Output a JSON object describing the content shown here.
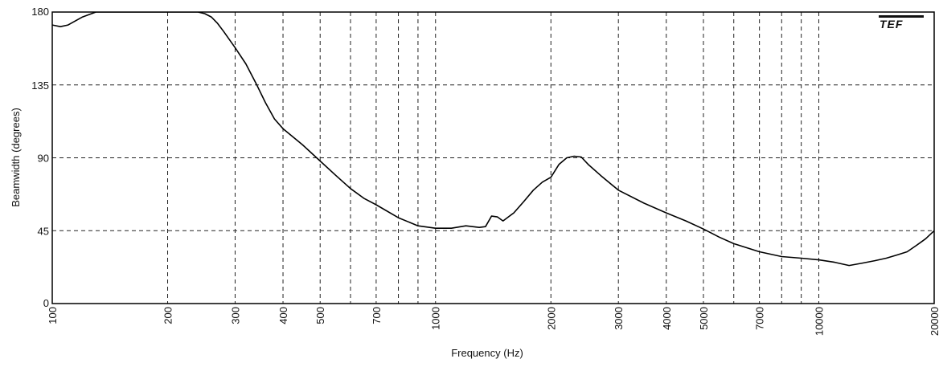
{
  "chart_data": {
    "type": "line",
    "title": "",
    "xlabel": "Frequency (Hz)",
    "ylabel": "Beamwidth (degrees)",
    "x_scale": "log",
    "xlim": [
      100,
      20000
    ],
    "ylim": [
      0,
      180
    ],
    "grid": true,
    "x_ticks": [
      "100",
      "200",
      "300",
      "400",
      "500",
      "700",
      "1000",
      "2000",
      "3000",
      "4000",
      "5000",
      "7000",
      "10000",
      "20000"
    ],
    "x_tick_values": [
      100,
      200,
      300,
      400,
      500,
      700,
      1000,
      2000,
      3000,
      4000,
      5000,
      7000,
      10000,
      20000
    ],
    "x_unlabeled_gridlines": [
      600,
      800,
      900,
      6000,
      8000,
      9000
    ],
    "y_ticks": [
      "0",
      "45",
      "90",
      "135",
      "180"
    ],
    "y_tick_values": [
      0,
      45,
      90,
      135,
      180
    ],
    "logo": "TEF",
    "series": [
      {
        "color": "#000000",
        "x": [
          100,
          105,
          110,
          120,
          130,
          140,
          150,
          200,
          240,
          250,
          260,
          270,
          280,
          300,
          320,
          340,
          360,
          380,
          400,
          450,
          500,
          550,
          600,
          650,
          700,
          800,
          900,
          1000,
          1100,
          1200,
          1300,
          1350,
          1400,
          1450,
          1500,
          1600,
          1700,
          1800,
          1900,
          2000,
          2100,
          2200,
          2300,
          2400,
          2500,
          2700,
          3000,
          3500,
          4000,
          4500,
          5000,
          5500,
          6000,
          7000,
          8000,
          9000,
          10000,
          11000,
          12000,
          13000,
          14000,
          15000,
          16000,
          17000,
          18000,
          19000,
          20000
        ],
        "y": [
          172,
          171,
          172,
          177,
          180,
          180,
          180,
          180,
          180,
          179,
          177,
          173,
          168,
          158,
          148,
          136,
          124,
          114,
          108,
          98,
          88,
          79,
          71,
          65,
          61,
          53,
          48,
          46.5,
          46.5,
          48,
          47,
          47.5,
          54,
          53.5,
          51,
          56,
          63,
          70,
          75,
          78,
          86,
          90,
          91,
          90.5,
          86,
          79,
          70,
          62,
          56,
          51,
          46,
          41,
          37,
          32,
          29,
          28,
          27,
          25.5,
          23.5,
          25,
          26.5,
          28,
          30,
          32,
          36,
          40,
          45
        ]
      }
    ]
  }
}
